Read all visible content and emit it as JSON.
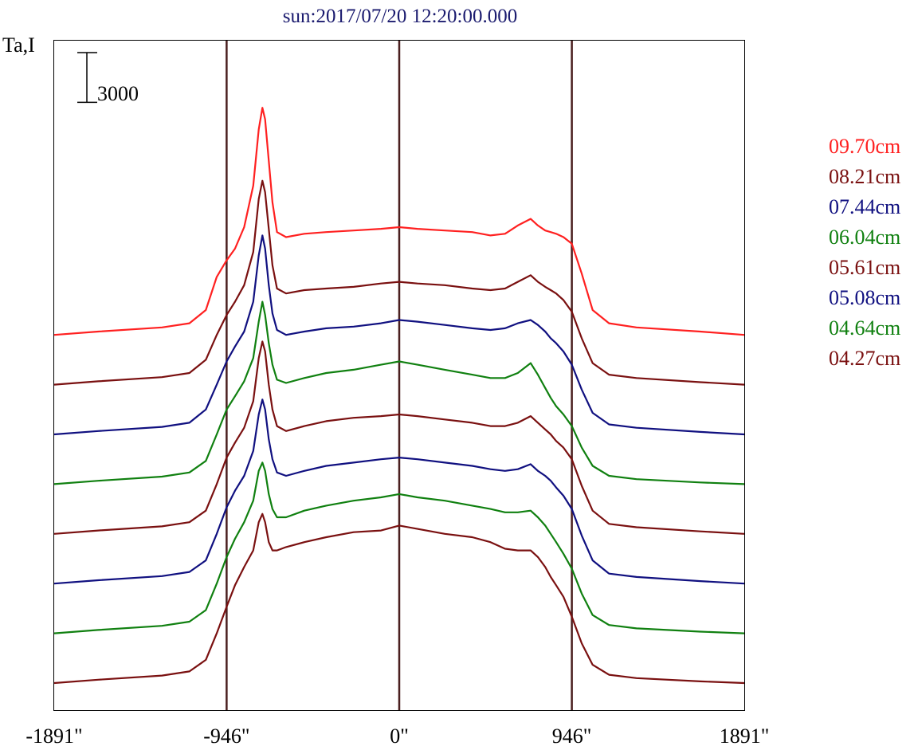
{
  "chart_data": {
    "type": "line",
    "title": "sun:2017/07/20 12:20:00.000",
    "ylabel": "Ta,I",
    "xlabel": "",
    "scale_bar_label": "3000",
    "scale_bar_value": 3000,
    "x_ticks": [
      "-1891\"",
      "-946\"",
      "0\"",
      "946\"",
      "1891\""
    ],
    "x_tick_values": [
      -1891,
      -946,
      0,
      946,
      1891
    ],
    "vertical_markers": [
      -946,
      0,
      946
    ],
    "xlim": [
      -1891,
      1891
    ],
    "grid": false,
    "legend_position": "right",
    "colors": {
      "title": "#1a1a6e",
      "axis": "#000000",
      "marker_lines": "#4a1f1f"
    },
    "series": [
      {
        "name": "09.70cm",
        "color": "#ff2020",
        "offset": 21000,
        "x": [
          -1891,
          -1650,
          -1300,
          -1150,
          -1060,
          -1000,
          -946,
          -900,
          -850,
          -800,
          -770,
          -750,
          -735,
          -715,
          -695,
          -670,
          -620,
          -520,
          -400,
          -250,
          -100,
          0,
          100,
          250,
          400,
          500,
          580,
          650,
          720,
          760,
          800,
          830,
          860,
          900,
          946,
          1000,
          1060,
          1150,
          1300,
          1650,
          1891
        ],
        "y": [
          0,
          200,
          450,
          700,
          1500,
          3500,
          4500,
          5200,
          6500,
          9000,
          12400,
          13700,
          13000,
          10500,
          8000,
          6200,
          5900,
          6100,
          6200,
          6300,
          6400,
          6500,
          6400,
          6300,
          6200,
          6000,
          6100,
          6600,
          7000,
          6600,
          6300,
          6200,
          6100,
          5900,
          5500,
          3700,
          1500,
          700,
          450,
          200,
          0
        ]
      },
      {
        "name": "08.21cm",
        "color": "#7a1010",
        "offset": 18000,
        "x": [
          -1891,
          -1650,
          -1300,
          -1150,
          -1060,
          -1000,
          -946,
          -900,
          -850,
          -800,
          -770,
          -750,
          -735,
          -715,
          -695,
          -670,
          -620,
          -520,
          -400,
          -250,
          -100,
          0,
          100,
          250,
          400,
          500,
          580,
          650,
          720,
          760,
          800,
          830,
          860,
          900,
          946,
          1000,
          1060,
          1150,
          1300,
          1650,
          1891
        ],
        "y": [
          0,
          200,
          450,
          700,
          1500,
          3000,
          4200,
          5000,
          6000,
          8000,
          11200,
          12300,
          11600,
          9400,
          7200,
          5800,
          5500,
          5700,
          5800,
          5900,
          6100,
          6200,
          6100,
          6000,
          5800,
          5700,
          5800,
          6200,
          6600,
          6200,
          5900,
          5700,
          5500,
          5100,
          4400,
          2800,
          1300,
          600,
          400,
          150,
          0
        ]
      },
      {
        "name": "07.44cm",
        "color": "#101080",
        "offset": 15000,
        "x": [
          -1891,
          -1650,
          -1300,
          -1150,
          -1060,
          -1000,
          -946,
          -900,
          -850,
          -800,
          -770,
          -750,
          -735,
          -715,
          -695,
          -670,
          -620,
          -520,
          -400,
          -250,
          -100,
          0,
          100,
          250,
          400,
          500,
          580,
          650,
          720,
          760,
          800,
          830,
          860,
          900,
          946,
          1000,
          1060,
          1150,
          1300,
          1650,
          1891
        ],
        "y": [
          0,
          200,
          450,
          700,
          1500,
          3000,
          4400,
          5300,
          6200,
          8000,
          10800,
          12000,
          11200,
          9000,
          7300,
          6300,
          6000,
          6200,
          6400,
          6500,
          6700,
          6900,
          6800,
          6600,
          6400,
          6300,
          6400,
          6700,
          6900,
          6600,
          6200,
          5800,
          5500,
          5000,
          4200,
          2700,
          1300,
          600,
          400,
          150,
          0
        ]
      },
      {
        "name": "06.04cm",
        "color": "#108010",
        "offset": 12000,
        "x": [
          -1891,
          -1650,
          -1300,
          -1150,
          -1060,
          -1000,
          -946,
          -900,
          -850,
          -800,
          -770,
          -750,
          -735,
          -715,
          -695,
          -670,
          -620,
          -520,
          -400,
          -250,
          -100,
          0,
          100,
          250,
          400,
          500,
          580,
          650,
          720,
          760,
          800,
          830,
          860,
          900,
          946,
          1000,
          1060,
          1150,
          1300,
          1650,
          1891
        ],
        "y": [
          0,
          200,
          450,
          700,
          1400,
          3000,
          4500,
          5300,
          6200,
          7600,
          9800,
          11000,
          10200,
          8500,
          7200,
          6300,
          6100,
          6400,
          6700,
          6900,
          7200,
          7400,
          7200,
          6900,
          6600,
          6400,
          6400,
          6700,
          7300,
          6600,
          5800,
          5200,
          4700,
          4200,
          3500,
          2200,
          1100,
          500,
          300,
          100,
          0
        ]
      },
      {
        "name": "05.61cm",
        "color": "#7a1010",
        "offset": 9000,
        "x": [
          -1891,
          -1650,
          -1300,
          -1150,
          -1060,
          -1000,
          -946,
          -900,
          -850,
          -800,
          -770,
          -750,
          -735,
          -715,
          -695,
          -670,
          -620,
          -520,
          -400,
          -250,
          -100,
          0,
          100,
          250,
          400,
          500,
          580,
          650,
          720,
          760,
          800,
          830,
          860,
          900,
          946,
          1000,
          1060,
          1150,
          1300,
          1650,
          1891
        ],
        "y": [
          0,
          200,
          450,
          700,
          1400,
          3000,
          4600,
          5500,
          6400,
          8000,
          10600,
          11600,
          11000,
          9000,
          7500,
          6500,
          6200,
          6500,
          6800,
          7000,
          7100,
          7200,
          7100,
          6900,
          6700,
          6500,
          6500,
          6700,
          7100,
          6700,
          6300,
          6000,
          5600,
          5200,
          4500,
          2900,
          1400,
          600,
          400,
          150,
          0
        ]
      },
      {
        "name": "05.08cm",
        "color": "#101080",
        "offset": 6000,
        "x": [
          -1891,
          -1650,
          -1300,
          -1150,
          -1060,
          -1000,
          -946,
          -900,
          -850,
          -800,
          -770,
          -750,
          -735,
          -715,
          -695,
          -670,
          -620,
          -520,
          -400,
          -250,
          -100,
          0,
          100,
          250,
          400,
          500,
          580,
          650,
          720,
          760,
          800,
          830,
          860,
          900,
          946,
          1000,
          1060,
          1150,
          1300,
          1650,
          1891
        ],
        "y": [
          0,
          200,
          450,
          700,
          1400,
          3000,
          4600,
          5600,
          6500,
          8000,
          10200,
          11100,
          10500,
          8700,
          7500,
          6700,
          6500,
          6800,
          7100,
          7300,
          7500,
          7600,
          7500,
          7300,
          7100,
          6900,
          6800,
          6900,
          7200,
          6800,
          6500,
          6200,
          5800,
          5300,
          4500,
          2900,
          1400,
          600,
          400,
          150,
          0
        ]
      },
      {
        "name": "04.64cm",
        "color": "#108010",
        "offset": 3000,
        "x": [
          -1891,
          -1650,
          -1300,
          -1150,
          -1060,
          -1000,
          -946,
          -900,
          -850,
          -800,
          -770,
          -750,
          -735,
          -715,
          -695,
          -670,
          -620,
          -520,
          -400,
          -250,
          -100,
          0,
          100,
          250,
          400,
          500,
          580,
          650,
          720,
          760,
          800,
          830,
          860,
          900,
          946,
          1000,
          1060,
          1150,
          1300,
          1650,
          1891
        ],
        "y": [
          0,
          200,
          450,
          700,
          1400,
          3000,
          4600,
          5700,
          6700,
          8000,
          9800,
          10300,
          9800,
          8400,
          7500,
          7000,
          7000,
          7400,
          7700,
          8000,
          8200,
          8400,
          8200,
          8000,
          7700,
          7500,
          7300,
          7300,
          7400,
          7000,
          6500,
          6000,
          5500,
          4800,
          3900,
          2400,
          1100,
          500,
          300,
          100,
          0
        ]
      },
      {
        "name": "04.27cm",
        "color": "#7a1010",
        "offset": 0,
        "x": [
          -1891,
          -1650,
          -1300,
          -1150,
          -1060,
          -1000,
          -946,
          -900,
          -850,
          -800,
          -770,
          -750,
          -735,
          -715,
          -695,
          -670,
          -620,
          -520,
          -400,
          -250,
          -100,
          0,
          100,
          250,
          400,
          500,
          580,
          650,
          720,
          760,
          800,
          830,
          860,
          900,
          946,
          1000,
          1060,
          1150,
          1300,
          1650,
          1891
        ],
        "y": [
          0,
          200,
          450,
          700,
          1400,
          3000,
          4600,
          5900,
          7000,
          8000,
          9700,
          10200,
          9700,
          8500,
          8000,
          8000,
          8200,
          8500,
          8800,
          9100,
          9200,
          9500,
          9300,
          9000,
          8800,
          8500,
          8100,
          8000,
          8000,
          7600,
          7000,
          6400,
          5900,
          5200,
          4000,
          2400,
          1100,
          500,
          300,
          100,
          0
        ]
      }
    ]
  }
}
